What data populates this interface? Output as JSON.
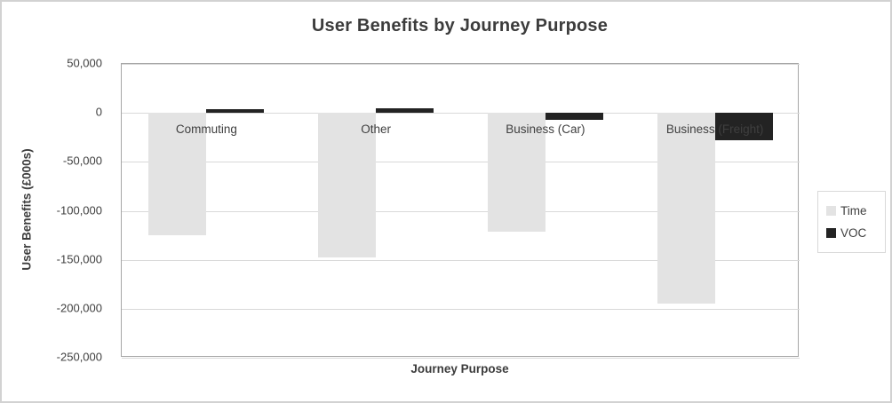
{
  "title": "User Benefits by Journey Purpose",
  "x_axis_title": "Journey Purpose",
  "y_axis_title": "User Benefits (£000s)",
  "legend": {
    "position": "right",
    "items": [
      {
        "label": "Time",
        "color": "#e3e3e3"
      },
      {
        "label": "VOC",
        "color": "#232323"
      }
    ]
  },
  "chart_data": {
    "type": "bar",
    "title": "User Benefits by Journey Purpose",
    "xlabel": "Journey Purpose",
    "ylabel": "User Benefits (£000s)",
    "categories": [
      "Commuting",
      "Other",
      "Business (Car)",
      "Business (Freight)"
    ],
    "series": [
      {
        "name": "Time",
        "color": "#e3e3e3",
        "values": [
          -125000,
          -148000,
          -121000,
          -195000
        ]
      },
      {
        "name": "VOC",
        "color": "#232323",
        "values": [
          4000,
          5000,
          -7000,
          -28000
        ]
      }
    ],
    "ylim": [
      -250000,
      50000
    ],
    "ytick_values": [
      50000,
      0,
      -50000,
      -100000,
      -150000,
      -200000,
      -250000
    ],
    "ytick_labels": [
      "50,000",
      "0",
      "-50,000",
      "-100,000",
      "-150,000",
      "-200,000",
      "-250,000"
    ],
    "grid": true,
    "legend_position": "right",
    "note": "Category labels are drawn just below the zero baseline; the '(Freight)' portion of the last label overlaps the dark VOC bar."
  }
}
